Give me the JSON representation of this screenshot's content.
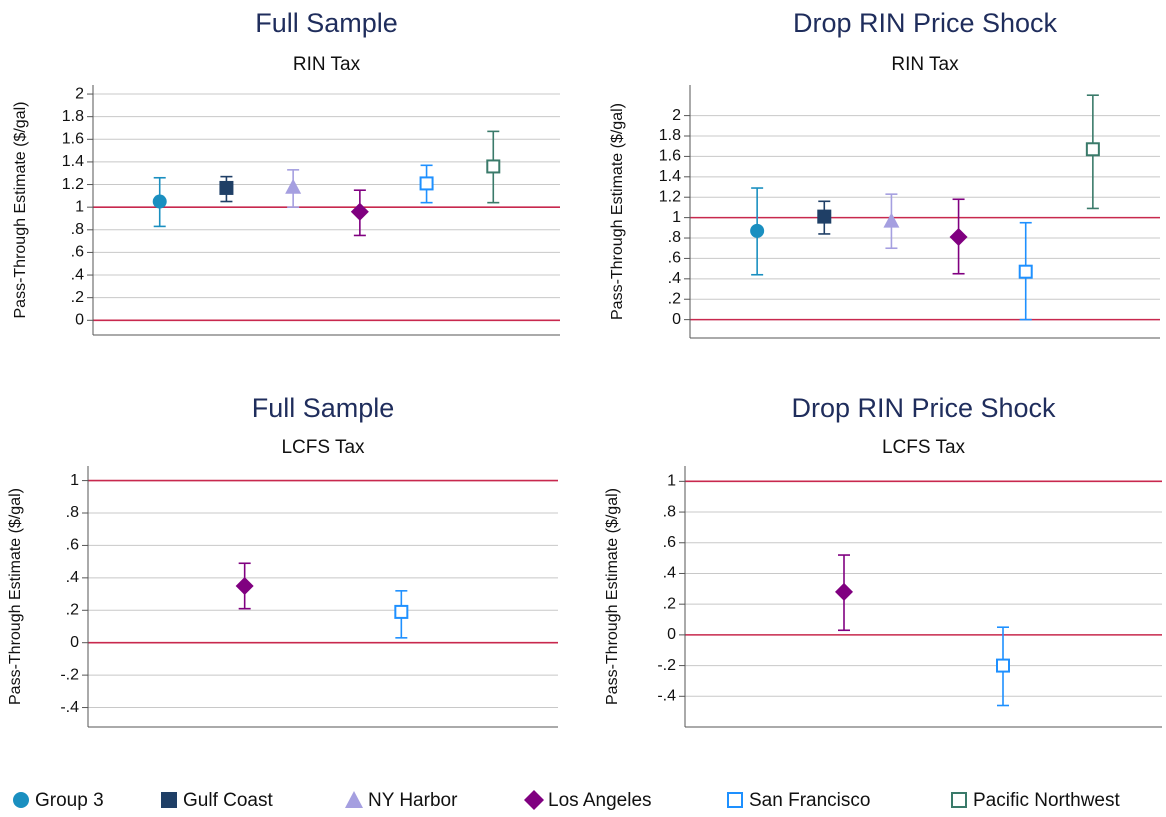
{
  "chart_data": [
    {
      "type": "errorbar",
      "title": "Full Sample",
      "subtitle": "RIN Tax",
      "y_label": "Pass-Through Estimate ($/gal)",
      "categories": [
        null,
        null,
        null,
        null,
        null,
        null
      ],
      "ylim": [
        -0.13,
        2.08
      ],
      "yticks": [
        0,
        {
          "value": 0.2,
          "label": ".2"
        },
        {
          "value": 0.4,
          "label": ".4"
        },
        {
          "value": 0.6,
          "label": ".6"
        },
        {
          "value": 0.8,
          "label": ".8"
        },
        1,
        1.2,
        1.4,
        1.6,
        1.8,
        2
      ],
      "grid": true,
      "reference_lines": [
        0,
        1
      ],
      "reference_color": "#c8284e",
      "series": [
        {
          "name": "Group 3",
          "color": "#1a8fc0",
          "marker": "circle",
          "values": [
            1.05,
            null,
            null,
            null,
            null,
            null
          ],
          "lower": [
            0.83,
            null,
            null,
            null,
            null,
            null
          ],
          "upper": [
            1.26,
            null,
            null,
            null,
            null,
            null
          ]
        },
        {
          "name": "Gulf Coast",
          "color": "#1f3f66",
          "marker": "square",
          "values": [
            null,
            1.17,
            null,
            null,
            null,
            null
          ],
          "lower": [
            null,
            1.05,
            null,
            null,
            null,
            null
          ],
          "upper": [
            null,
            1.27,
            null,
            null,
            null,
            null
          ]
        },
        {
          "name": "NY Harbor",
          "color": "#a59fe0",
          "marker": "triangle",
          "values": [
            null,
            null,
            1.18,
            null,
            null,
            null
          ],
          "lower": [
            null,
            null,
            1.0,
            null,
            null,
            null
          ],
          "upper": [
            null,
            null,
            1.33,
            null,
            null,
            null
          ]
        },
        {
          "name": "Los Angeles",
          "color": "#800080",
          "marker": "diamond",
          "values": [
            null,
            null,
            null,
            0.96,
            null,
            null
          ],
          "lower": [
            null,
            null,
            null,
            0.75,
            null,
            null
          ],
          "upper": [
            null,
            null,
            null,
            1.15,
            null,
            null
          ]
        },
        {
          "name": "San Francisco",
          "color": "#1e90ff",
          "marker": "square-open",
          "values": [
            null,
            null,
            null,
            null,
            1.21,
            null
          ],
          "lower": [
            null,
            null,
            null,
            null,
            1.04,
            null
          ],
          "upper": [
            null,
            null,
            null,
            null,
            1.37,
            null
          ]
        },
        {
          "name": "Pacific Northwest",
          "color": "#3a7a6a",
          "marker": "square-open",
          "values": [
            null,
            null,
            null,
            null,
            null,
            1.36
          ],
          "lower": [
            null,
            null,
            null,
            null,
            null,
            1.04
          ],
          "upper": [
            null,
            null,
            null,
            null,
            null,
            1.67
          ]
        }
      ]
    },
    {
      "type": "errorbar",
      "title": "Drop RIN Price Shock",
      "subtitle": "RIN Tax",
      "y_label": "Pass-Through Estimate ($/gal)",
      "categories": [
        null,
        null,
        null,
        null,
        null,
        null
      ],
      "ylim": [
        -0.18,
        2.3
      ],
      "yticks": [
        0,
        {
          "value": 0.2,
          "label": ".2"
        },
        {
          "value": 0.4,
          "label": ".4"
        },
        {
          "value": 0.6,
          "label": ".6"
        },
        {
          "value": 0.8,
          "label": ".8"
        },
        1,
        1.2,
        1.4,
        1.6,
        1.8,
        2
      ],
      "grid": true,
      "reference_lines": [
        0,
        1
      ],
      "reference_color": "#c8284e",
      "series": [
        {
          "name": "Group 3",
          "color": "#1a8fc0",
          "marker": "circle",
          "values": [
            0.87,
            null,
            null,
            null,
            null,
            null
          ],
          "lower": [
            0.44,
            null,
            null,
            null,
            null,
            null
          ],
          "upper": [
            1.29,
            null,
            null,
            null,
            null,
            null
          ]
        },
        {
          "name": "Gulf Coast",
          "color": "#1f3f66",
          "marker": "square",
          "values": [
            null,
            1.01,
            null,
            null,
            null,
            null
          ],
          "lower": [
            null,
            0.84,
            null,
            null,
            null,
            null
          ],
          "upper": [
            null,
            1.16,
            null,
            null,
            null,
            null
          ]
        },
        {
          "name": "NY Harbor",
          "color": "#a59fe0",
          "marker": "triangle",
          "values": [
            null,
            null,
            0.97,
            null,
            null,
            null
          ],
          "lower": [
            null,
            null,
            0.7,
            null,
            null,
            null
          ],
          "upper": [
            null,
            null,
            1.23,
            null,
            null,
            null
          ]
        },
        {
          "name": "Los Angeles",
          "color": "#800080",
          "marker": "diamond",
          "values": [
            null,
            null,
            null,
            0.81,
            null,
            null
          ],
          "lower": [
            null,
            null,
            null,
            0.45,
            null,
            null
          ],
          "upper": [
            null,
            null,
            null,
            1.18,
            null,
            null
          ]
        },
        {
          "name": "San Francisco",
          "color": "#1e90ff",
          "marker": "square-open",
          "values": [
            null,
            null,
            null,
            null,
            0.47,
            null
          ],
          "lower": [
            null,
            null,
            null,
            null,
            0.0,
            null
          ],
          "upper": [
            null,
            null,
            null,
            null,
            0.95,
            null
          ]
        },
        {
          "name": "Pacific Northwest",
          "color": "#3a7a6a",
          "marker": "square-open",
          "values": [
            null,
            null,
            null,
            null,
            null,
            1.67
          ],
          "lower": [
            null,
            null,
            null,
            null,
            null,
            1.09
          ],
          "upper": [
            null,
            null,
            null,
            null,
            null,
            2.2
          ]
        }
      ]
    },
    {
      "type": "errorbar",
      "title": "Full Sample",
      "subtitle": "LCFS Tax",
      "y_label": "Pass-Through Estimate ($/gal)",
      "categories": [
        null,
        null
      ],
      "ylim": [
        -0.52,
        1.09
      ],
      "yticks": [
        {
          "value": -0.4,
          "label": "-.4"
        },
        {
          "value": -0.2,
          "label": "-.2"
        },
        0,
        {
          "value": 0.2,
          "label": ".2"
        },
        {
          "value": 0.4,
          "label": ".4"
        },
        {
          "value": 0.6,
          "label": ".6"
        },
        {
          "value": 0.8,
          "label": ".8"
        },
        1
      ],
      "grid": true,
      "reference_lines": [
        0,
        1
      ],
      "reference_color": "#c8284e",
      "series": [
        {
          "name": "Los Angeles",
          "color": "#800080",
          "marker": "diamond",
          "values": [
            0.35,
            null
          ],
          "lower": [
            0.21,
            null
          ],
          "upper": [
            0.49,
            null
          ]
        },
        {
          "name": "San Francisco",
          "color": "#1e90ff",
          "marker": "square-open",
          "values": [
            null,
            0.19
          ],
          "lower": [
            null,
            0.03
          ],
          "upper": [
            null,
            0.32
          ]
        }
      ]
    },
    {
      "type": "errorbar",
      "title": "Drop RIN Price Shock",
      "subtitle": "LCFS Tax",
      "y_label": "Pass-Through Estimate ($/gal)",
      "categories": [
        null,
        null
      ],
      "ylim": [
        -0.6,
        1.1
      ],
      "yticks": [
        {
          "value": -0.4,
          "label": "-.4"
        },
        {
          "value": -0.2,
          "label": "-.2"
        },
        0,
        {
          "value": 0.2,
          "label": ".2"
        },
        {
          "value": 0.4,
          "label": ".4"
        },
        {
          "value": 0.6,
          "label": ".6"
        },
        {
          "value": 0.8,
          "label": ".8"
        },
        1
      ],
      "grid": true,
      "reference_lines": [
        0,
        1
      ],
      "reference_color": "#c8284e",
      "series": [
        {
          "name": "Los Angeles",
          "color": "#800080",
          "marker": "diamond",
          "values": [
            0.28,
            null
          ],
          "lower": [
            0.03,
            null
          ],
          "upper": [
            0.52,
            null
          ]
        },
        {
          "name": "San Francisco",
          "color": "#1e90ff",
          "marker": "square-open",
          "values": [
            null,
            -0.2
          ],
          "lower": [
            null,
            -0.46
          ],
          "upper": [
            null,
            0.05
          ]
        }
      ]
    }
  ]
}
